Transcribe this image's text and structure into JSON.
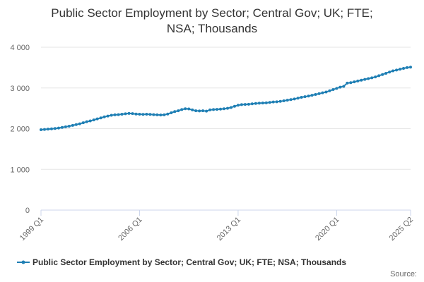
{
  "colors": {
    "series": "#1f7fb4",
    "grid": "#e6e6e6",
    "axis": "#ccd6eb"
  },
  "source_label": "Source:",
  "chart_data": {
    "type": "line",
    "title_lines": [
      "Public Sector Employment by Sector; Central Gov; UK; FTE;",
      "NSA; Thousands"
    ],
    "xlabel": "",
    "ylabel": "",
    "ylim": [
      0,
      4000
    ],
    "y_ticks": [
      0,
      1000,
      2000,
      3000,
      4000
    ],
    "y_tick_labels": [
      "0",
      "1 000",
      "2 000",
      "3 000",
      "4 000"
    ],
    "x_tick_labels": [
      "1999 Q1",
      "2006 Q1",
      "2013 Q1",
      "2020 Q1",
      "2025 Q2"
    ],
    "x_tick_indices": [
      0,
      28,
      56,
      84,
      105
    ],
    "grid": true,
    "legend_position": "bottom",
    "series": [
      {
        "name": "Public Sector Employment by Sector; Central Gov; UK; FTE; NSA; Thousands",
        "x": [
          "1999 Q1",
          "1999 Q2",
          "1999 Q3",
          "1999 Q4",
          "2000 Q1",
          "2000 Q2",
          "2000 Q3",
          "2000 Q4",
          "2001 Q1",
          "2001 Q2",
          "2001 Q3",
          "2001 Q4",
          "2002 Q1",
          "2002 Q2",
          "2002 Q3",
          "2002 Q4",
          "2003 Q1",
          "2003 Q2",
          "2003 Q3",
          "2003 Q4",
          "2004 Q1",
          "2004 Q2",
          "2004 Q3",
          "2004 Q4",
          "2005 Q1",
          "2005 Q2",
          "2005 Q3",
          "2005 Q4",
          "2006 Q1",
          "2006 Q2",
          "2006 Q3",
          "2006 Q4",
          "2007 Q1",
          "2007 Q2",
          "2007 Q3",
          "2007 Q4",
          "2008 Q1",
          "2008 Q2",
          "2008 Q3",
          "2008 Q4",
          "2009 Q1",
          "2009 Q2",
          "2009 Q3",
          "2009 Q4",
          "2010 Q1",
          "2010 Q2",
          "2010 Q3",
          "2010 Q4",
          "2011 Q1",
          "2011 Q2",
          "2011 Q3",
          "2011 Q4",
          "2012 Q1",
          "2012 Q2",
          "2012 Q3",
          "2012 Q4",
          "2013 Q1",
          "2013 Q2",
          "2013 Q3",
          "2013 Q4",
          "2014 Q1",
          "2014 Q2",
          "2014 Q3",
          "2014 Q4",
          "2015 Q1",
          "2015 Q2",
          "2015 Q3",
          "2015 Q4",
          "2016 Q1",
          "2016 Q2",
          "2016 Q3",
          "2016 Q4",
          "2017 Q1",
          "2017 Q2",
          "2017 Q3",
          "2017 Q4",
          "2018 Q1",
          "2018 Q2",
          "2018 Q3",
          "2018 Q4",
          "2019 Q1",
          "2019 Q2",
          "2019 Q3",
          "2019 Q4",
          "2020 Q1",
          "2020 Q2",
          "2020 Q3",
          "2020 Q4",
          "2021 Q1",
          "2021 Q2",
          "2021 Q3",
          "2021 Q4",
          "2022 Q1",
          "2022 Q2",
          "2022 Q3",
          "2022 Q4",
          "2023 Q1",
          "2023 Q2",
          "2023 Q3",
          "2023 Q4",
          "2024 Q1",
          "2024 Q2",
          "2024 Q3",
          "2024 Q4",
          "2025 Q1",
          "2025 Q2"
        ],
        "values": [
          1975,
          1980,
          1990,
          1995,
          2005,
          2015,
          2030,
          2045,
          2060,
          2080,
          2100,
          2120,
          2145,
          2170,
          2190,
          2215,
          2240,
          2265,
          2290,
          2310,
          2330,
          2340,
          2345,
          2355,
          2365,
          2375,
          2370,
          2360,
          2355,
          2350,
          2355,
          2350,
          2345,
          2340,
          2335,
          2340,
          2360,
          2390,
          2420,
          2440,
          2470,
          2490,
          2485,
          2460,
          2440,
          2435,
          2440,
          2430,
          2460,
          2470,
          2475,
          2480,
          2490,
          2500,
          2520,
          2550,
          2575,
          2590,
          2595,
          2600,
          2610,
          2620,
          2625,
          2630,
          2635,
          2645,
          2655,
          2660,
          2670,
          2685,
          2700,
          2715,
          2730,
          2750,
          2770,
          2785,
          2800,
          2820,
          2840,
          2860,
          2880,
          2900,
          2930,
          2960,
          2990,
          3020,
          3040,
          3120,
          3130,
          3150,
          3170,
          3190,
          3210,
          3230,
          3250,
          3270,
          3300,
          3330,
          3360,
          3390,
          3420,
          3440,
          3460,
          3480,
          3500,
          3510
        ]
      }
    ]
  }
}
